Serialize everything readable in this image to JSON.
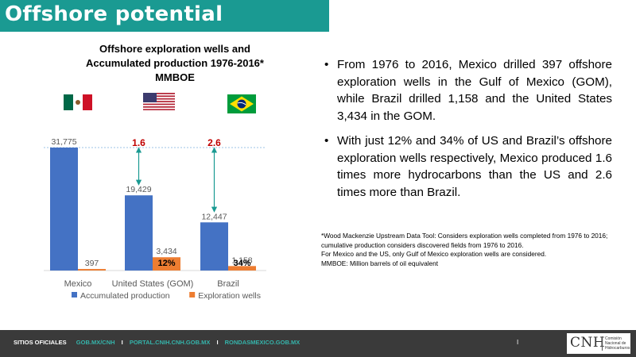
{
  "header": {
    "title": "Offshore potential"
  },
  "chart_data": {
    "type": "bar",
    "title_lines": [
      "Offshore exploration wells and",
      "Accumulated production 1976-2016*",
      "MMBOE"
    ],
    "categories": [
      "Mexico",
      "United States (GOM)",
      "Brazil"
    ],
    "series": [
      {
        "name": "Accumulated production",
        "values": [
          31775,
          19429,
          12447
        ],
        "labels": [
          "31,775",
          "19,429",
          "12,447"
        ],
        "color": "#4472c4"
      },
      {
        "name": "Exploration wells",
        "values": [
          397,
          3434,
          1158
        ],
        "labels": [
          "397",
          "3,434",
          "1,158"
        ],
        "color": "#ed7d31"
      }
    ],
    "ylim": [
      0,
      32000
    ],
    "grid": false,
    "legend": "bottom",
    "ratio_annotations": [
      {
        "label": "1.6",
        "category": "United States (GOM)"
      },
      {
        "label": "2.6",
        "category": "Brazil"
      }
    ],
    "share_labels": [
      {
        "label": "12%",
        "category": "United States (GOM)"
      },
      {
        "label": "34%",
        "category": "Brazil"
      }
    ],
    "colors": {
      "annotation": "#c00000",
      "arrow": "#1a9a92",
      "reference_line": "#9dc3e6"
    }
  },
  "flags": [
    {
      "name": "Mexico",
      "icon": "mexico-flag-icon"
    },
    {
      "name": "United States",
      "icon": "usa-flag-icon"
    },
    {
      "name": "Brazil",
      "icon": "brazil-flag-icon"
    }
  ],
  "bullets": [
    "From 1976 to 2016, Mexico drilled 397 offshore exploration wells in the Gulf of Mexico (GOM), while Brazil drilled 1,158 and the United States 3,434 in the GOM.",
    "With just 12% and 34% of US and Brazil’s offshore exploration wells respectively, Mexico produced 1.6 times more hydrocarbons than the US and 2.6 times more than Brazil."
  ],
  "footnote": [
    "*Wood Mackenzie Upstream Data Tool: Considers exploration wells completed from 1976 to 2016; cumulative production considers discovered fields from 1976 to 2016.",
    "For Mexico and the US, only Gulf of Mexico exploration wells are considered.",
    "MMBOE: Million barrels of oil equivalent"
  ],
  "footer": {
    "label": "SITIOS OFICIALES",
    "links": [
      "GOB.MX/CNH",
      "PORTAL.CNIH.CNH.GOB.MX",
      "RONDASMEXICO.GOB.MX"
    ],
    "pipe": "I",
    "logo_text": "CNH",
    "logo_subtitle": "Comisión Nacional de Hidrocarburos"
  },
  "theme": {
    "teal": "#1a9a92",
    "footer_bg": "#3a3a3a"
  }
}
